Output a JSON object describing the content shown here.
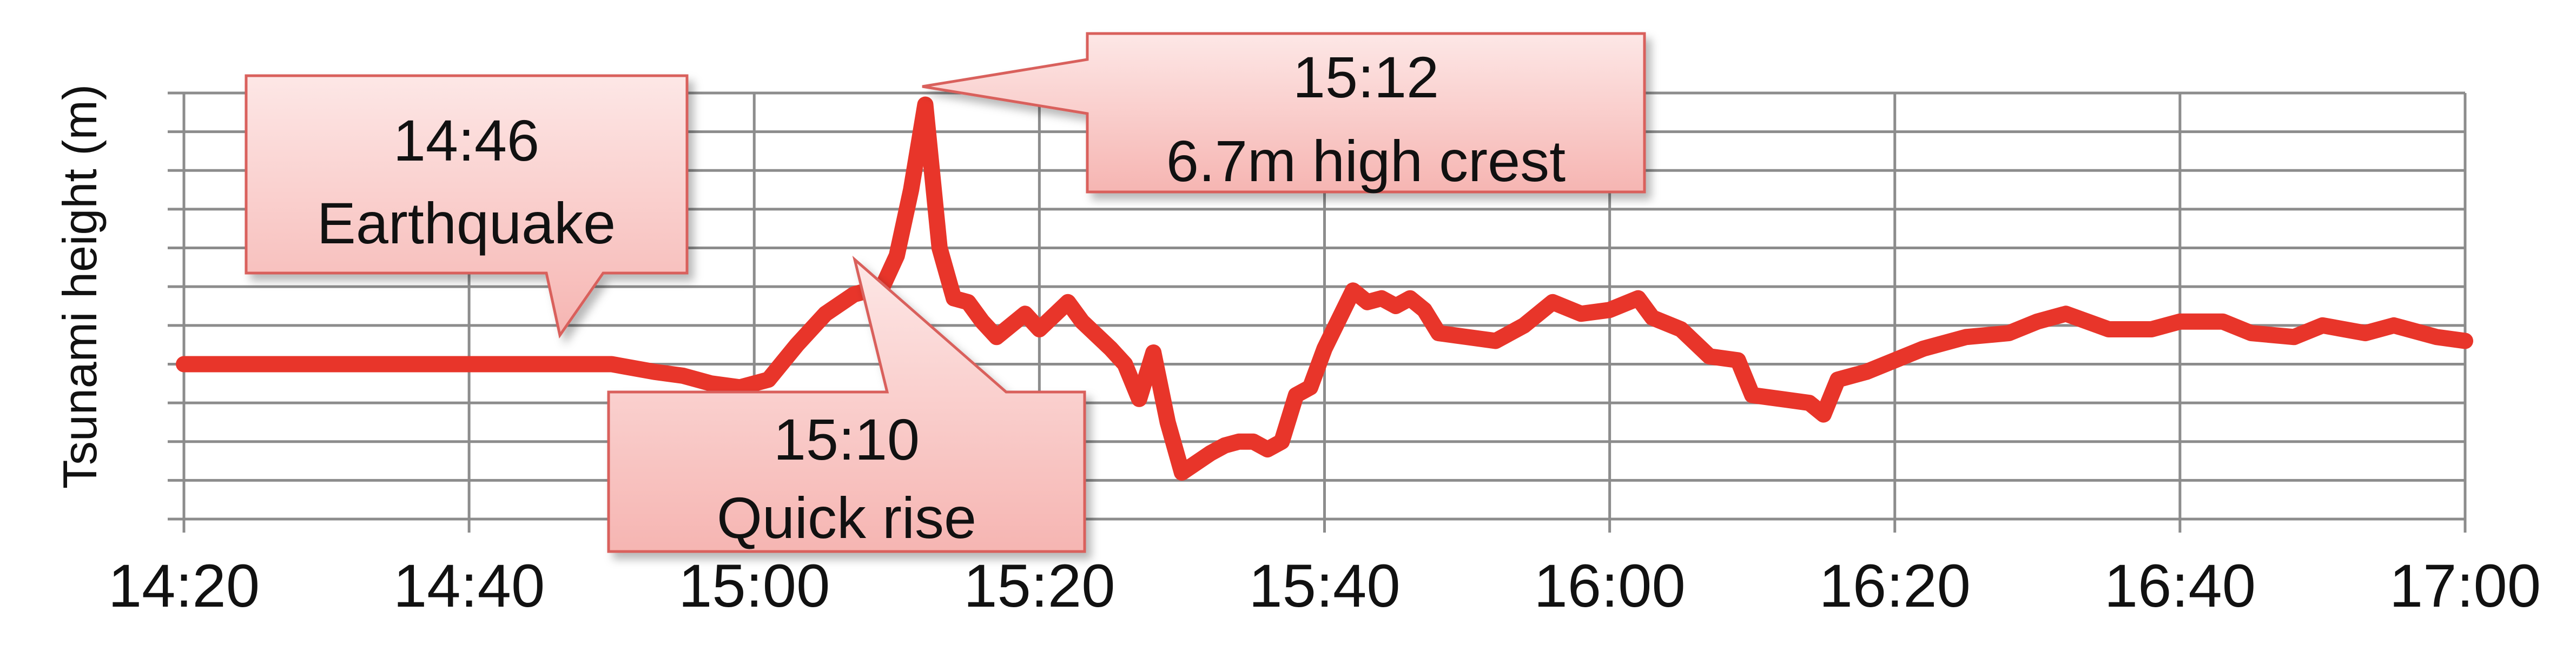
{
  "chart_data": {
    "type": "line",
    "ylabel": "Tsunami height (m)",
    "xlabel": "",
    "x_ticks": [
      "14:20",
      "14:40",
      "15:00",
      "15:20",
      "15:40",
      "16:00",
      "16:20",
      "16:40",
      "17:00"
    ],
    "xlim_minutes": [
      860,
      1020
    ],
    "ylim": [
      -4,
      7
    ],
    "grid": true,
    "series": [
      {
        "color": "#e8352a",
        "x": [
          "14:20",
          "14:25",
          "14:30",
          "14:35",
          "14:40",
          "14:45",
          "14:50",
          "14:53",
          "14:55",
          "14:57",
          "14:59",
          "15:01",
          "15:03",
          "15:05",
          "15:07",
          "15:09",
          "15:10",
          "15:11",
          "15:12",
          "15:13",
          "15:14",
          "15:15",
          "15:16",
          "15:17",
          "15:19",
          "15:20",
          "15:22",
          "15:23",
          "15:25",
          "15:26",
          "15:27",
          "15:28",
          "15:29",
          "15:30",
          "15:32",
          "15:33",
          "15:34",
          "15:35",
          "15:36",
          "15:37",
          "15:38",
          "15:39",
          "15:40",
          "15:42",
          "15:43",
          "15:44",
          "15:45",
          "15:46",
          "15:47",
          "15:48",
          "15:50",
          "15:52",
          "15:54",
          "15:56",
          "15:58",
          "16:00",
          "16:02",
          "16:03",
          "16:05",
          "16:07",
          "16:09",
          "16:10",
          "16:12",
          "16:14",
          "16:15",
          "16:16",
          "16:18",
          "16:20",
          "16:22",
          "16:25",
          "16:28",
          "16:30",
          "16:32",
          "16:35",
          "16:38",
          "16:40",
          "16:43",
          "16:45",
          "16:48",
          "16:50",
          "16:53",
          "16:55",
          "16:58",
          "17:00"
        ],
        "y": [
          0,
          0,
          0,
          0,
          0,
          0,
          0,
          -0.2,
          -0.3,
          -0.5,
          -0.6,
          -0.4,
          0.5,
          1.3,
          1.8,
          2.0,
          2.8,
          4.5,
          6.7,
          3.0,
          1.7,
          1.6,
          1.1,
          0.7,
          1.3,
          0.9,
          1.6,
          1.1,
          0.4,
          0,
          -0.9,
          0.3,
          -1.5,
          -2.8,
          -2.3,
          -2.1,
          -2.0,
          -2.0,
          -2.2,
          -2.0,
          -0.8,
          -0.6,
          0.4,
          1.9,
          1.6,
          1.7,
          1.5,
          1.7,
          1.4,
          0.8,
          0.7,
          0.6,
          1.0,
          1.6,
          1.3,
          1.4,
          1.7,
          1.2,
          0.9,
          0.2,
          0.1,
          -0.8,
          -0.9,
          -1.0,
          -1.3,
          -0.4,
          -0.2,
          0.1,
          0.4,
          0.7,
          0.8,
          1.1,
          1.3,
          0.9,
          0.9,
          1.1,
          1.1,
          0.8,
          0.7,
          1.0,
          0.8,
          1.0,
          0.7,
          0.6
        ]
      }
    ],
    "annotations": [
      {
        "time": "14:46",
        "text": "Earthquake"
      },
      {
        "time": "15:10",
        "text": "Quick rise"
      },
      {
        "time": "15:12",
        "text": "6.7m high crest"
      }
    ]
  }
}
